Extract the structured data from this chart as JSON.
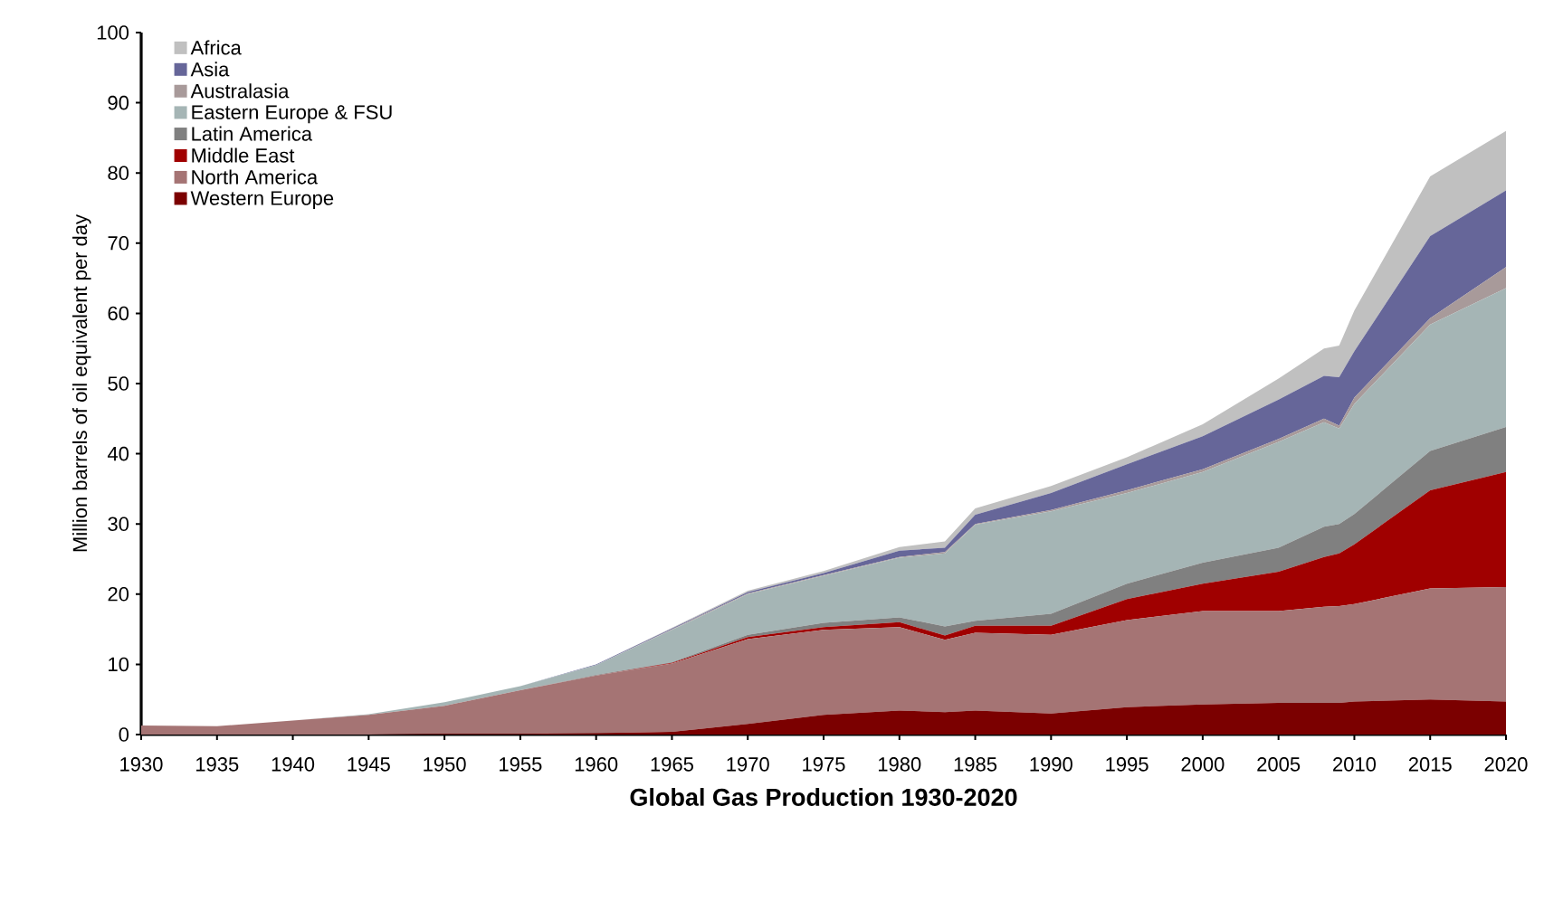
{
  "chart_data": {
    "type": "area",
    "stacked": true,
    "title": "Global Gas Production 1930-2020",
    "ylabel": "Million barrels of oil equivalent  per day",
    "x": [
      1930,
      1935,
      1940,
      1945,
      1950,
      1955,
      1960,
      1965,
      1970,
      1975,
      1980,
      1983,
      1985,
      1990,
      1995,
      2000,
      2005,
      2008,
      2009,
      2010,
      2015,
      2020
    ],
    "xlim": [
      1930,
      2020
    ],
    "xticks": [
      1930,
      1935,
      1940,
      1945,
      1950,
      1955,
      1960,
      1965,
      1970,
      1975,
      1980,
      1985,
      1990,
      1995,
      2000,
      2005,
      2010,
      2015,
      2020
    ],
    "ylim": [
      0,
      100
    ],
    "yticks": [
      0,
      10,
      20,
      30,
      40,
      50,
      60,
      70,
      80,
      90,
      100
    ],
    "grid": false,
    "legend": "top left",
    "series": [
      {
        "name": "Western Europe",
        "color": "#7b0000",
        "values": [
          0,
          0,
          0,
          0,
          0.1,
          0.1,
          0.2,
          0.4,
          1.5,
          2.8,
          3.4,
          3.2,
          3.4,
          3.0,
          3.9,
          4.3,
          4.5,
          4.5,
          4.5,
          4.7,
          5.0,
          4.7
        ]
      },
      {
        "name": "North America",
        "color": "#a57474",
        "values": [
          1.3,
          1.2,
          2.0,
          2.8,
          4.0,
          6.2,
          8.2,
          9.7,
          12.1,
          12.1,
          11.9,
          10.3,
          11.1,
          11.2,
          12.4,
          13.3,
          13.1,
          13.7,
          13.8,
          13.9,
          15.8,
          16.3
        ]
      },
      {
        "name": "Middle East",
        "color": "#a00000",
        "values": [
          0,
          0,
          0,
          0,
          0,
          0,
          0,
          0.1,
          0.3,
          0.4,
          0.7,
          0.6,
          1.0,
          1.3,
          3.0,
          3.9,
          5.6,
          7.1,
          7.5,
          8.5,
          14.0,
          16.4
        ]
      },
      {
        "name": "Latin America",
        "color": "#808080",
        "values": [
          0,
          0,
          0,
          0,
          0,
          0,
          0.1,
          0.1,
          0.3,
          0.6,
          0.7,
          1.3,
          0.7,
          1.7,
          2.2,
          3.0,
          3.4,
          4.3,
          4.2,
          4.3,
          5.6,
          6.4
        ]
      },
      {
        "name": "Eastern Europe & FSU",
        "color": "#a5b5b5",
        "values": [
          0,
          0,
          0,
          0.1,
          0.5,
          0.6,
          1.4,
          4.6,
          5.8,
          6.7,
          8.5,
          10.4,
          13.7,
          14.6,
          12.9,
          12.9,
          15.1,
          14.9,
          13.6,
          15.7,
          18.0,
          19.8
        ]
      },
      {
        "name": "Australasia",
        "color": "#a89a9a",
        "values": [
          0,
          0,
          0,
          0,
          0,
          0,
          0,
          0.1,
          0.1,
          0.1,
          0.1,
          0.2,
          0.1,
          0.2,
          0.4,
          0.4,
          0.4,
          0.5,
          0.4,
          0.9,
          0.9,
          3.0
        ]
      },
      {
        "name": "Asia",
        "color": "#666699",
        "values": [
          0,
          0,
          0,
          0,
          0,
          0,
          0.1,
          0.1,
          0.2,
          0.3,
          0.9,
          0.6,
          1.3,
          2.4,
          3.7,
          4.7,
          5.6,
          6.1,
          6.9,
          6.6,
          11.7,
          10.9
        ]
      },
      {
        "name": "Africa",
        "color": "#c0c0c0",
        "values": [
          0,
          0,
          0,
          0,
          0,
          0,
          0,
          0.1,
          0.2,
          0.3,
          0.5,
          0.9,
          0.9,
          1.0,
          1.0,
          1.7,
          3.0,
          3.9,
          4.5,
          5.8,
          8.5,
          8.5
        ]
      }
    ]
  }
}
